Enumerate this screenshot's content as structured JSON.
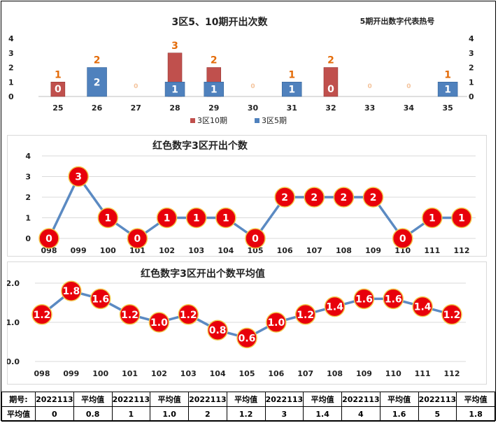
{
  "colors": {
    "red": "#c0504d",
    "blue": "#4f81bd",
    "orange": "#e46c0a",
    "ball": "#e8000b"
  },
  "chart_data": [
    {
      "type": "bar",
      "title": "3区5、10期开出次数",
      "subtitle": "5期开出数字代表热号",
      "categories": [
        "25",
        "26",
        "27",
        "28",
        "29",
        "30",
        "31",
        "32",
        "33",
        "34",
        "35"
      ],
      "series": [
        {
          "name": "3区10期",
          "values": [
            1,
            2,
            0,
            3,
            2,
            0,
            1,
            2,
            0,
            0,
            1
          ]
        },
        {
          "name": "3区5期",
          "values": [
            0,
            2,
            0,
            1,
            1,
            0,
            1,
            0,
            0,
            0,
            1
          ]
        }
      ],
      "ylim": [
        0,
        4
      ],
      "yticks": [
        "0",
        "1",
        "2",
        "3",
        "4"
      ],
      "legend_position": "bottom"
    },
    {
      "type": "line",
      "title": "红色数字3区开出个数",
      "categories": [
        "098",
        "099",
        "100",
        "101",
        "102",
        "103",
        "104",
        "105",
        "106",
        "107",
        "108",
        "109",
        "110",
        "111",
        "112"
      ],
      "values": [
        0,
        3,
        1,
        0,
        1,
        1,
        1,
        0,
        2,
        2,
        2,
        2,
        0,
        1,
        1
      ],
      "ylim": [
        0,
        4
      ],
      "yticks": [
        "0",
        "1",
        "2",
        "3",
        "4"
      ]
    },
    {
      "type": "line",
      "title": "红色数字3区开出个数平均值",
      "categories": [
        "098",
        "099",
        "100",
        "101",
        "102",
        "103",
        "104",
        "105",
        "106",
        "107",
        "108",
        "109",
        "110",
        "111",
        "112"
      ],
      "values": [
        1.2,
        1.8,
        1.6,
        1.2,
        1.0,
        1.2,
        0.8,
        0.6,
        1.0,
        1.2,
        1.4,
        1.6,
        1.6,
        1.4,
        1.2
      ],
      "labels": [
        "1.2",
        "1.8",
        "1.6",
        "1.2",
        "1.0",
        "1.2",
        "0.8",
        "0.6",
        "1.0",
        "1.2",
        "1.4",
        "1.6",
        "1.6",
        "1.4",
        "1.2"
      ],
      "ylim": [
        0,
        2
      ],
      "yticks": [
        "0.0",
        "1.0",
        "2.0"
      ]
    }
  ],
  "table": {
    "row1": [
      "期号:",
      "2022113",
      "平均值",
      "2022113",
      "平均值",
      "2022113",
      "平均值",
      "2022113",
      "平均值",
      "2022113",
      "平均值",
      "2022113",
      "平均值"
    ],
    "row2": [
      "平均值",
      "0",
      "0.8",
      "1",
      "1.0",
      "2",
      "1.2",
      "3",
      "1.4",
      "4",
      "1.6",
      "5",
      "1.8"
    ]
  }
}
